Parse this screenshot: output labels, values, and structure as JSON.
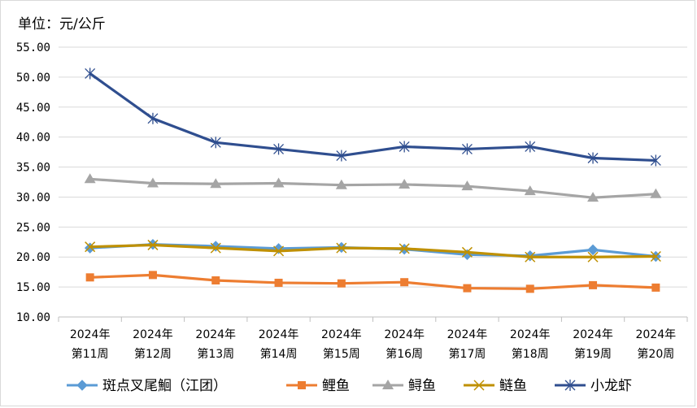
{
  "chart_data": {
    "type": "line",
    "unit_label": "单位：元/公斤",
    "categories": [
      [
        "2024年",
        "第11周"
      ],
      [
        "2024年",
        "第12周"
      ],
      [
        "2024年",
        "第13周"
      ],
      [
        "2024年",
        "第14周"
      ],
      [
        "2024年",
        "第15周"
      ],
      [
        "2024年",
        "第16周"
      ],
      [
        "2024年",
        "第17周"
      ],
      [
        "2024年",
        "第18周"
      ],
      [
        "2024年",
        "第19周"
      ],
      [
        "2024年",
        "第20周"
      ]
    ],
    "y_ticks": [
      "10.00",
      "15.00",
      "20.00",
      "25.00",
      "30.00",
      "35.00",
      "40.00",
      "45.00",
      "50.00",
      "55.00"
    ],
    "ylim": [
      10,
      55
    ],
    "grid": true,
    "legend_position": "bottom",
    "series": [
      {
        "name": "斑点叉尾鮰（江团）",
        "color": "#5B9BD5",
        "marker": "diamond",
        "values": [
          21.5,
          22.1,
          21.8,
          21.4,
          21.6,
          21.3,
          20.4,
          20.2,
          21.2,
          20.1
        ]
      },
      {
        "name": "鲤鱼",
        "color": "#ED7D31",
        "marker": "square",
        "values": [
          16.6,
          17.0,
          16.1,
          15.7,
          15.6,
          15.8,
          14.8,
          14.7,
          15.3,
          14.9
        ]
      },
      {
        "name": "鲟鱼",
        "color": "#A5A5A5",
        "marker": "triangle",
        "values": [
          33.0,
          32.3,
          32.2,
          32.3,
          32.0,
          32.1,
          31.8,
          31.0,
          29.9,
          30.5
        ]
      },
      {
        "name": "鲢鱼",
        "color": "#BF9000",
        "marker": "x",
        "values": [
          21.7,
          22.0,
          21.5,
          21.0,
          21.5,
          21.4,
          20.8,
          20.0,
          20.0,
          20.1
        ]
      },
      {
        "name": "小龙虾",
        "color": "#2F4E8F",
        "marker": "star",
        "values": [
          50.6,
          43.1,
          39.1,
          38.0,
          36.9,
          38.4,
          38.0,
          38.4,
          36.5,
          36.1
        ]
      }
    ]
  }
}
